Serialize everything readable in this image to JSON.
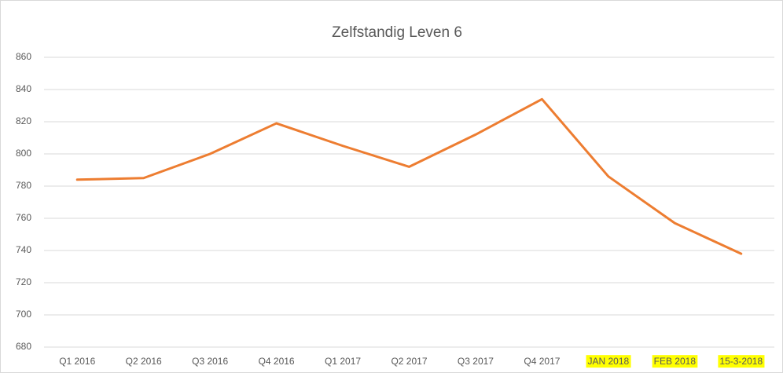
{
  "chart_data": {
    "type": "line",
    "title": "Zelfstandig Leven 6",
    "categories": [
      "Q1 2016",
      "Q2 2016",
      "Q3 2016",
      "Q4 2016",
      "Q1 2017",
      "Q2 2017",
      "Q3 2017",
      "Q4 2017",
      "JAN 2018",
      "FEB 2018",
      "15-3-2018"
    ],
    "series": [
      {
        "name": "Zelfstandig Leven 6",
        "color": "#ed7d31",
        "values": [
          784,
          785,
          800,
          819,
          805,
          792,
          812,
          834,
          786,
          757,
          738
        ]
      }
    ],
    "ylim": [
      680,
      860
    ],
    "yticks": [
      680,
      700,
      720,
      740,
      760,
      780,
      800,
      820,
      840,
      860
    ],
    "grid": true,
    "label_highlight": {
      "color": "#ffff00",
      "categories": [
        8,
        9,
        10
      ]
    }
  }
}
